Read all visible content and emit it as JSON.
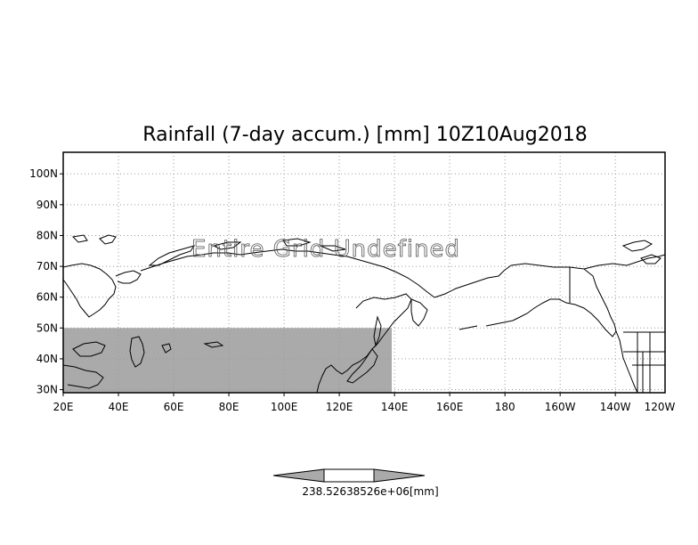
{
  "title": "Rainfall (7-day accum.) [mm] 10Z10Aug2018",
  "overlay_message": "Entire Grid Undefined",
  "map": {
    "lon_range": [
      20,
      238
    ],
    "lat_range": [
      29,
      107
    ],
    "lon_ticks": [
      {
        "lon": 20,
        "label": "20E"
      },
      {
        "lon": 40,
        "label": "40E"
      },
      {
        "lon": 60,
        "label": "60E"
      },
      {
        "lon": 80,
        "label": "80E"
      },
      {
        "lon": 100,
        "label": "100E"
      },
      {
        "lon": 120,
        "label": "120E"
      },
      {
        "lon": 140,
        "label": "140E"
      },
      {
        "lon": 160,
        "label": "160E"
      },
      {
        "lon": 180,
        "label": "180"
      },
      {
        "lon": 200,
        "label": "160W"
      },
      {
        "lon": 220,
        "label": "140W"
      },
      {
        "lon": 240,
        "label": "120W"
      }
    ],
    "lat_ticks": [
      {
        "lat": 30,
        "label": "30N"
      },
      {
        "lat": 40,
        "label": "40N"
      },
      {
        "lat": 50,
        "label": "50N"
      },
      {
        "lat": 60,
        "label": "60N"
      },
      {
        "lat": 70,
        "label": "70N"
      },
      {
        "lat": 80,
        "label": "80N"
      },
      {
        "lat": 90,
        "label": "90N"
      },
      {
        "lat": 100,
        "label": "100N"
      }
    ],
    "grid": "dotted",
    "shaded_region": {
      "lon_min": 20,
      "lon_max": 139,
      "lat_min": 29,
      "lat_max": 50,
      "color": "#aaaaaa"
    },
    "land_color": "#ffffff",
    "coast_color": "#000000"
  },
  "colorbar": {
    "label": "238.52638526e+06[mm]",
    "color": "#aaaaaa"
  }
}
